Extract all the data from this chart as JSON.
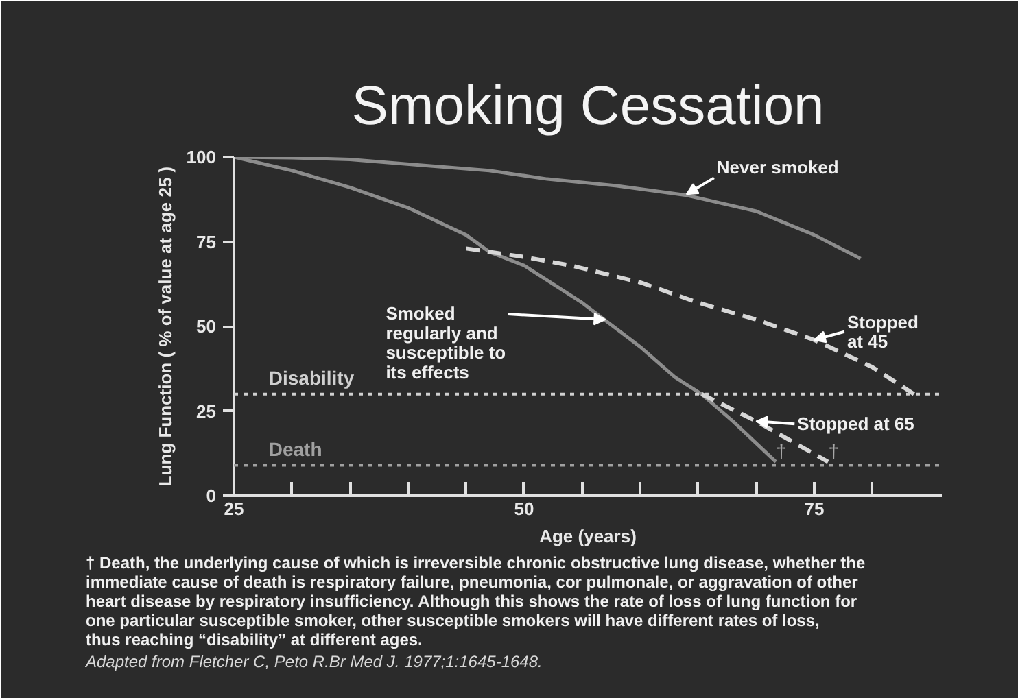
{
  "chart_data": {
    "type": "line",
    "title": "Smoking Cessation",
    "xlabel": "Age (years)",
    "ylabel": "Lung Function ( % of value at age 25 )",
    "xlim": [
      25,
      86
    ],
    "ylim": [
      0,
      100
    ],
    "xticks": [
      25,
      {
        "value": 30,
        "label": null
      },
      {
        "value": 35,
        "label": null
      },
      {
        "value": 40,
        "label": null
      },
      {
        "value": 45,
        "label": null
      },
      50,
      {
        "value": 55,
        "label": null
      },
      {
        "value": 60,
        "label": null
      },
      {
        "value": 65,
        "label": null
      },
      {
        "value": 70,
        "label": null
      },
      75,
      {
        "value": 80,
        "label": null
      }
    ],
    "yticks": [
      0,
      25,
      50,
      75,
      100
    ],
    "grid": false,
    "marker": "none",
    "series": [
      {
        "color": "#8c8c8c",
        "line_style": "solid",
        "x": [
          25,
          30,
          35,
          41,
          47,
          52,
          58,
          64,
          70,
          75,
          79
        ],
        "values": [
          100,
          99.8,
          99.3,
          97.6,
          96,
          93.5,
          91.5,
          88.7,
          84,
          77,
          70
        ]
      },
      {
        "color": "#8c8c8c",
        "line_style": "solid",
        "x": [
          25,
          30,
          35,
          40,
          45,
          47,
          50,
          55,
          60,
          63,
          65.3,
          68,
          71.7
        ],
        "values": [
          100,
          96,
          91,
          85,
          77,
          72,
          68,
          57,
          44,
          35,
          30,
          22,
          10
        ]
      },
      {
        "color": "#d6d6d6",
        "line_style": "dashed",
        "x": [
          45,
          50,
          54,
          60,
          65,
          70,
          75,
          80,
          83.6
        ],
        "values": [
          73,
          70.5,
          68,
          63,
          57,
          52,
          46,
          38,
          30
        ]
      },
      {
        "color": "#d6d6d6",
        "line_style": "dashed",
        "x": [
          65.3,
          70,
          76.2
        ],
        "values": [
          30,
          22,
          10
        ]
      }
    ],
    "ref_lines": [
      {
        "axis": "y",
        "value": 30,
        "label": "Disability",
        "color": "#d0d0d0",
        "line_style": "dotted"
      },
      {
        "axis": "y",
        "value": 9,
        "label": "Death",
        "color": "#a0a0a0",
        "line_style": "dotted"
      }
    ],
    "annotations": [
      {
        "text": "Never smoked",
        "x": 64,
        "y": 89
      },
      {
        "text": "Smoked\nregularly and\nsusceptible to\nits effects",
        "x": 57,
        "y": 52
      },
      {
        "text": "Stopped\nat 45",
        "x": 75,
        "y": 46
      },
      {
        "text": "Stopped at 65",
        "x": 70,
        "y": 22
      },
      {
        "text": "†",
        "x": 71.7,
        "y": 10
      },
      {
        "text": "†",
        "x": 76.2,
        "y": 10
      },
      "† Death, the underlying cause of which is irreversible chronic obstructive lung disease, whether the\nimmediate cause of death is respiratory failure, pneumonia, cor pulmonale, or aggravation of other\nheart disease by respiratory insufficiency. Although this shows the rate of loss of lung function for\none particular susceptible smoker, other susceptible smokers will have different rates of loss,\nthus reaching “disability” at different ages.",
      "Adapted from Fletcher C, Peto R.Br Med J. 1977;1:1645-1648."
    ]
  }
}
